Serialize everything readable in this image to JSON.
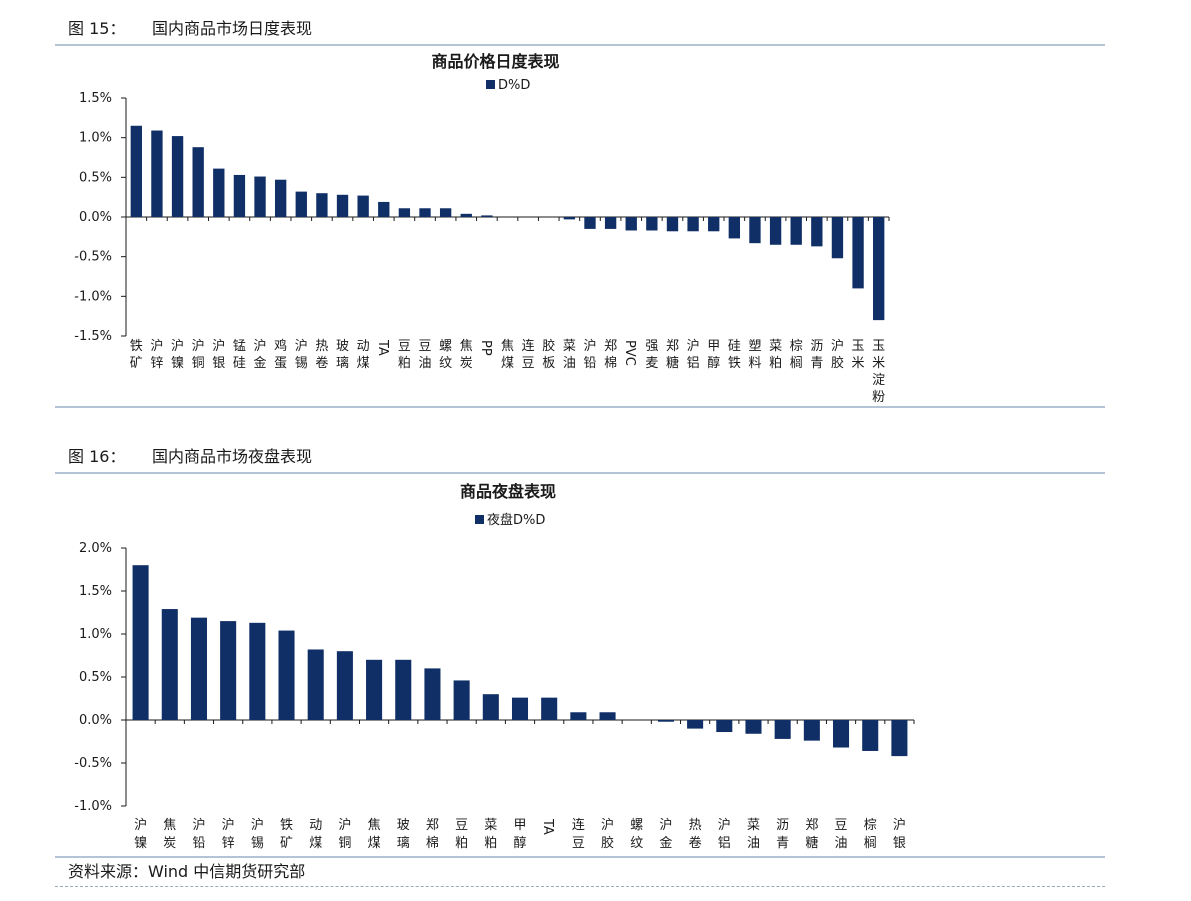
{
  "figures": [
    {
      "number": "图 15：",
      "caption": "国内商品市场日度表现",
      "chart_data": {
        "type": "bar",
        "title": "商品价格日度表现",
        "legend": "D%D",
        "legend_position": "top-center",
        "ylim": [
          -1.5,
          1.5
        ],
        "yticks": [
          "1.5%",
          "1.0%",
          "0.5%",
          "0.0%",
          "-0.5%",
          "-1.0%",
          "-1.5%"
        ],
        "ytick_values": [
          1.5,
          1.0,
          0.5,
          0.0,
          -0.5,
          -1.0,
          -1.5
        ],
        "grid": false,
        "color": "#0f2f66",
        "categories": [
          "铁矿",
          "沪锌",
          "沪镍",
          "沪铜",
          "沪银",
          "锰硅",
          "沪金",
          "鸡蛋",
          "沪锡",
          "热卷",
          "玻璃",
          "动煤",
          "TA",
          "豆粕",
          "豆油",
          "螺纹",
          "焦炭",
          "PP",
          "焦煤",
          "连豆",
          "胶板",
          "菜油",
          "沪铅",
          "郑棉",
          "PVC",
          "强麦",
          "郑糖",
          "沪铝",
          "甲醇",
          "硅铁",
          "塑料",
          "菜粕",
          "棕榈",
          "沥青",
          "沪胶",
          "玉米",
          "玉米淀粉"
        ],
        "values": [
          1.15,
          1.09,
          1.02,
          0.88,
          0.61,
          0.53,
          0.51,
          0.47,
          0.32,
          0.3,
          0.28,
          0.27,
          0.19,
          0.11,
          0.11,
          0.11,
          0.04,
          0.02,
          0.0,
          0.0,
          0.0,
          -0.03,
          -0.15,
          -0.15,
          -0.17,
          -0.17,
          -0.18,
          -0.18,
          -0.18,
          -0.27,
          -0.33,
          -0.35,
          -0.35,
          -0.37,
          -0.52,
          -0.9,
          -1.3
        ]
      }
    },
    {
      "number": "图 16：",
      "caption": "国内商品市场夜盘表现",
      "chart_data": {
        "type": "bar",
        "title": "商品夜盘表现",
        "legend": "夜盘D%D",
        "legend_position": "top-center",
        "ylim": [
          -1.0,
          2.0
        ],
        "yticks": [
          "2.0%",
          "1.5%",
          "1.0%",
          "0.5%",
          "0.0%",
          "-0.5%",
          "-1.0%"
        ],
        "ytick_values": [
          2.0,
          1.5,
          1.0,
          0.5,
          0.0,
          -0.5,
          -1.0
        ],
        "grid": false,
        "color": "#0f2f66",
        "categories": [
          "沪镍",
          "焦炭",
          "沪铅",
          "沪锌",
          "沪锡",
          "铁矿",
          "动煤",
          "沪铜",
          "焦煤",
          "玻璃",
          "郑棉",
          "豆粕",
          "菜粕",
          "甲醇",
          "TA",
          "连豆",
          "沪胶",
          "螺纹",
          "沪金",
          "热卷",
          "沪铝",
          "菜油",
          "沥青",
          "郑糖",
          "豆油",
          "棕榈",
          "沪银"
        ],
        "values": [
          1.8,
          1.29,
          1.19,
          1.15,
          1.13,
          1.04,
          0.82,
          0.8,
          0.7,
          0.7,
          0.6,
          0.46,
          0.3,
          0.26,
          0.26,
          0.09,
          0.09,
          0.0,
          -0.02,
          -0.1,
          -0.14,
          -0.16,
          -0.22,
          -0.24,
          -0.32,
          -0.36,
          -0.42
        ]
      }
    }
  ],
  "source": "资料来源：Wind  中信期货研究部"
}
